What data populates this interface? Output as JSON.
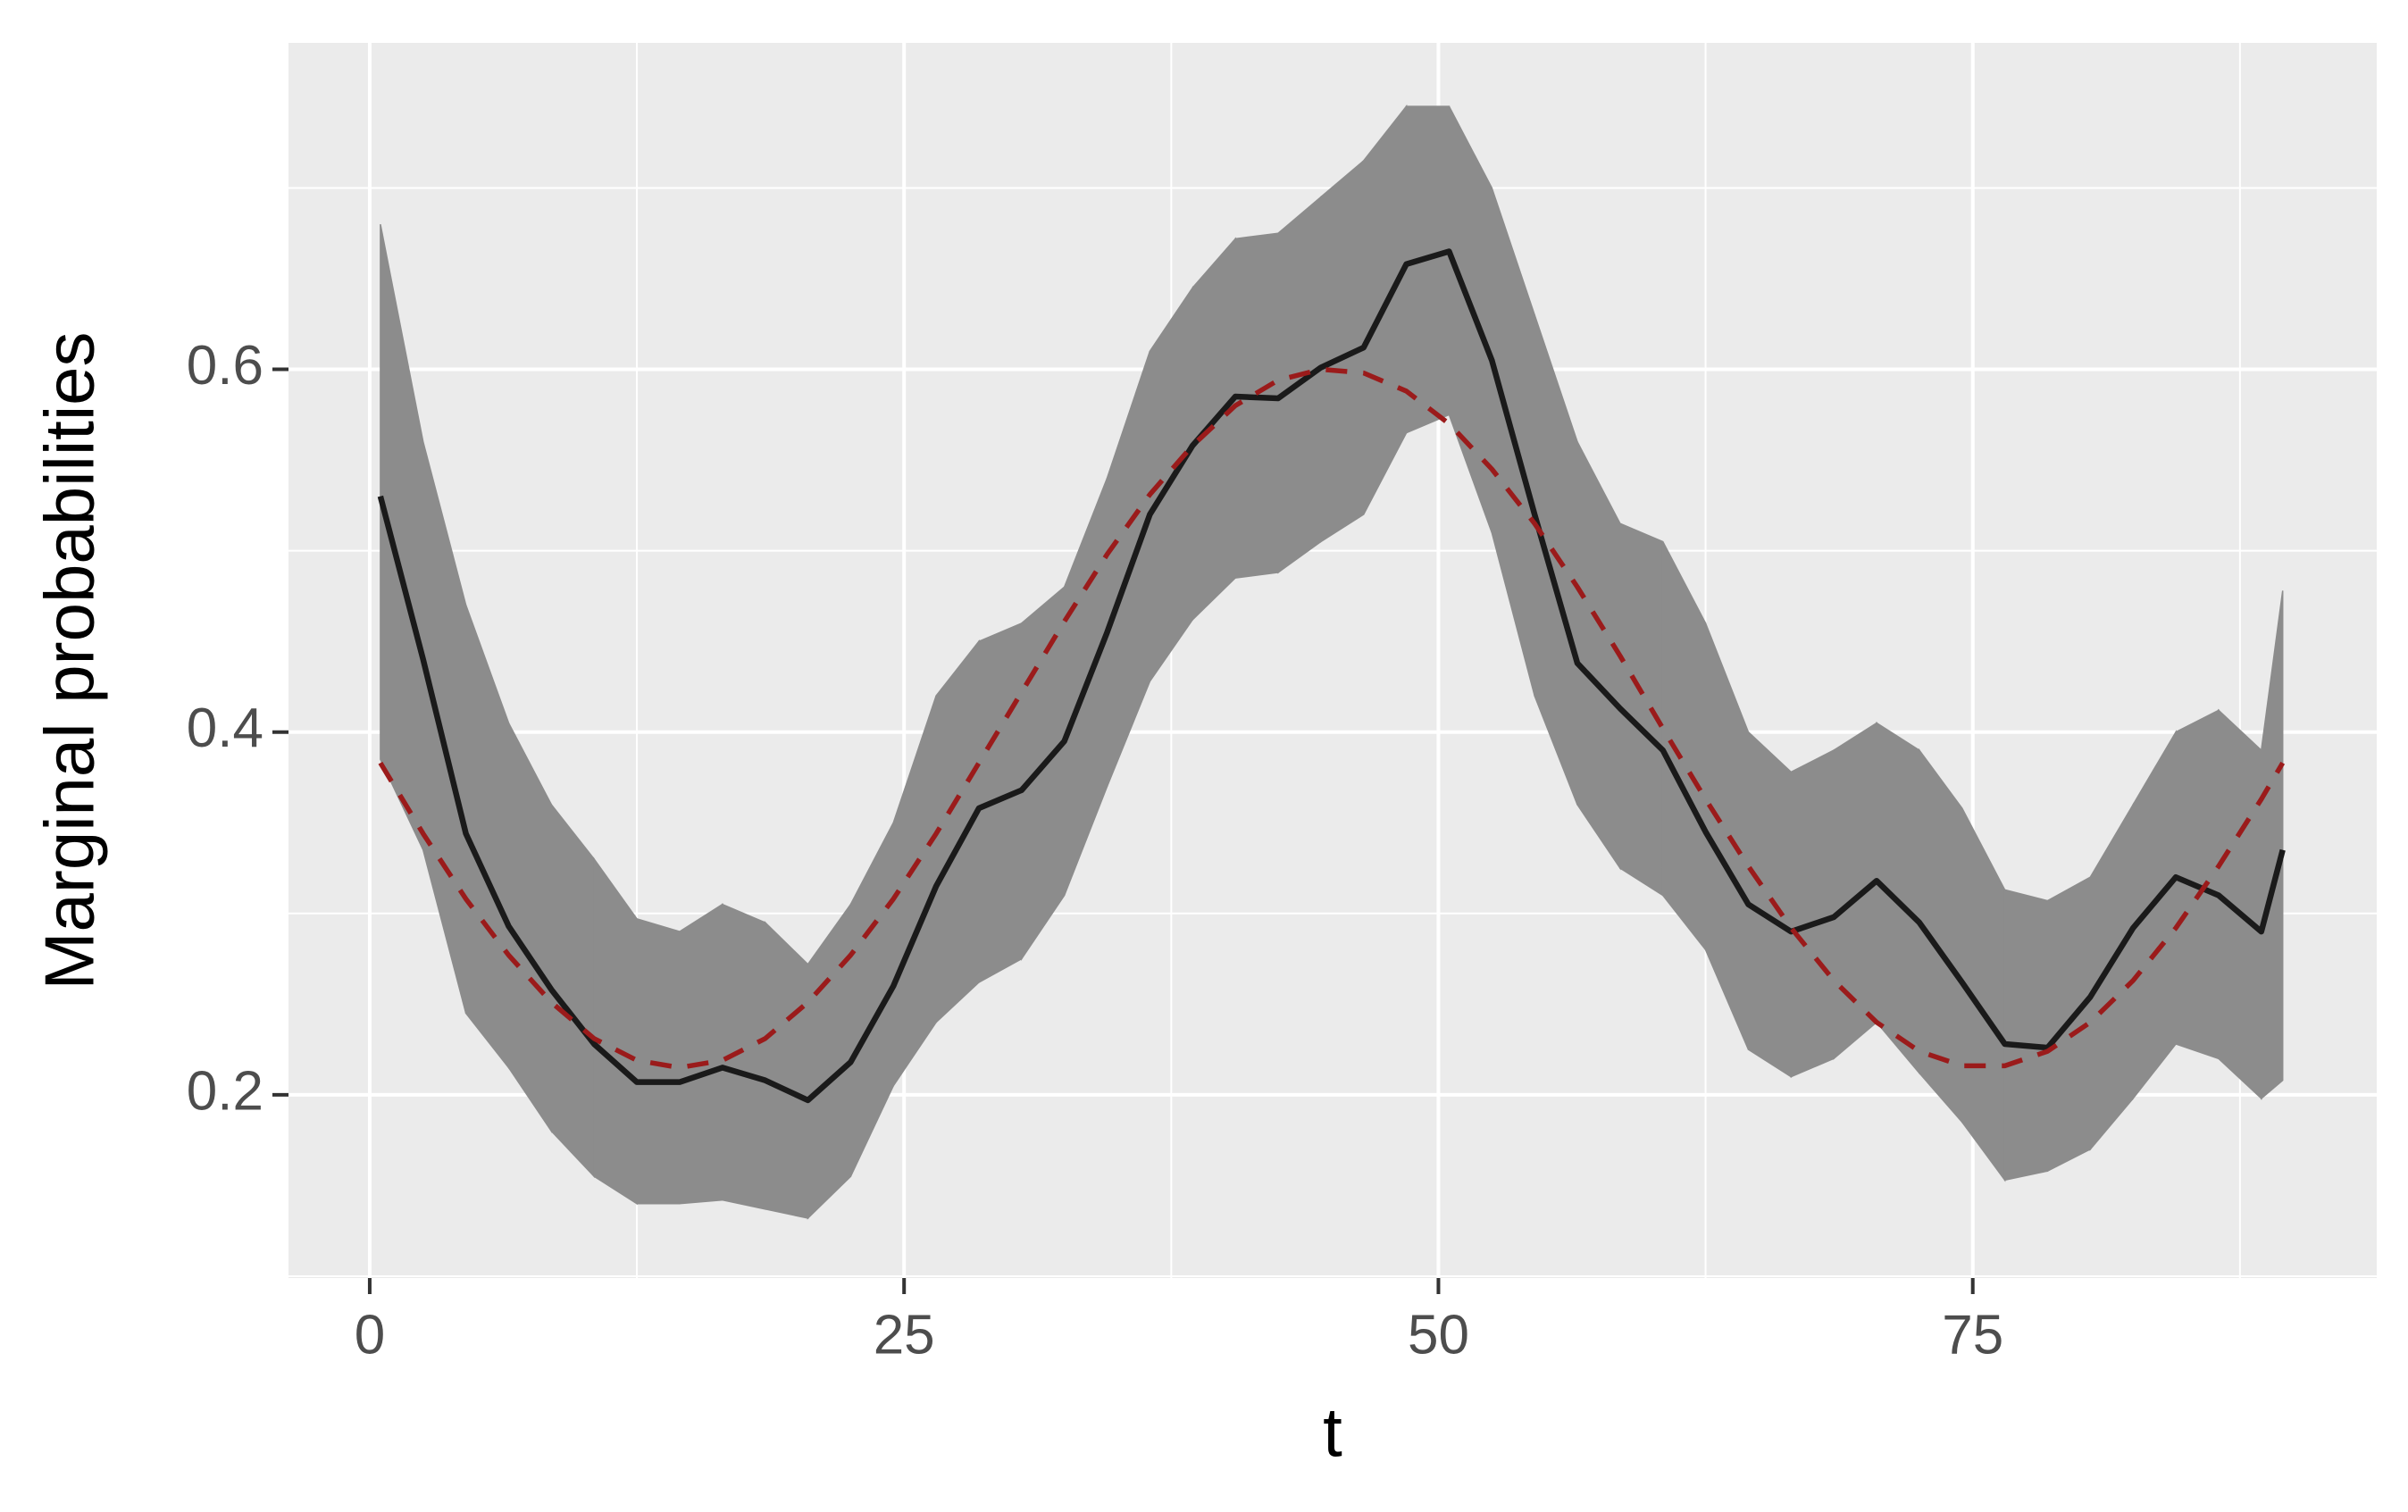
{
  "chart_data": {
    "type": "line",
    "x_label": "t",
    "y_label": "Marginal probabilities",
    "x": [
      0.5,
      2.5,
      4.5,
      6.5,
      8.5,
      10.5,
      12.5,
      14.5,
      16.5,
      18.5,
      20.5,
      22.5,
      24.5,
      26.5,
      28.5,
      30.5,
      32.5,
      34.5,
      36.5,
      38.5,
      40.5,
      42.5,
      44.5,
      46.5,
      48.5,
      50.5,
      52.5,
      54.5,
      56.5,
      58.5,
      60.5,
      62.5,
      64.5,
      66.5,
      68.5,
      70.5,
      72.5,
      74.5,
      76.5,
      78.5,
      80.5,
      82.5,
      84.5,
      86.5,
      88.5,
      89.5
    ],
    "ribbon": {
      "color": "#8c8c8c",
      "upper": [
        0.68,
        0.56,
        0.47,
        0.405,
        0.36,
        0.33,
        0.297,
        0.29,
        0.305,
        0.295,
        0.272,
        0.305,
        0.35,
        0.42,
        0.45,
        0.46,
        0.48,
        0.54,
        0.61,
        0.645,
        0.672,
        0.675,
        0.695,
        0.715,
        0.745,
        0.745,
        0.7,
        0.63,
        0.56,
        0.515,
        0.505,
        0.46,
        0.4,
        0.378,
        0.39,
        0.405,
        0.39,
        0.358,
        0.313,
        0.307,
        0.32,
        0.36,
        0.4,
        0.412,
        0.39,
        0.478
      ],
      "lower": [
        0.385,
        0.335,
        0.245,
        0.215,
        0.18,
        0.155,
        0.14,
        0.14,
        0.142,
        0.137,
        0.132,
        0.155,
        0.205,
        0.24,
        0.262,
        0.275,
        0.31,
        0.37,
        0.428,
        0.462,
        0.485,
        0.488,
        0.505,
        0.52,
        0.565,
        0.575,
        0.51,
        0.42,
        0.36,
        0.325,
        0.31,
        0.28,
        0.225,
        0.21,
        0.22,
        0.24,
        0.212,
        0.185,
        0.153,
        0.158,
        0.17,
        0.198,
        0.228,
        0.22,
        0.198,
        0.208
      ]
    },
    "series": [
      {
        "color": "#1a1a1a",
        "style": "solid",
        "values": [
          0.53,
          0.44,
          0.344,
          0.293,
          0.258,
          0.228,
          0.207,
          0.207,
          0.215,
          0.208,
          0.197,
          0.218,
          0.26,
          0.315,
          0.358,
          0.368,
          0.395,
          0.455,
          0.52,
          0.558,
          0.585,
          0.584,
          0.601,
          0.612,
          0.658,
          0.665,
          0.605,
          0.52,
          0.438,
          0.413,
          0.39,
          0.345,
          0.305,
          0.29,
          0.298,
          0.318,
          0.295,
          0.262,
          0.228,
          0.226,
          0.254,
          0.292,
          0.32,
          0.31,
          0.29,
          0.335
        ]
      },
      {
        "color": "#9b1b1b",
        "style": "dashed",
        "values": [
          0.383,
          0.344,
          0.308,
          0.277,
          0.251,
          0.231,
          0.219,
          0.215,
          0.219,
          0.231,
          0.251,
          0.277,
          0.308,
          0.344,
          0.383,
          0.422,
          0.461,
          0.498,
          0.531,
          0.558,
          0.58,
          0.594,
          0.6,
          0.598,
          0.588,
          0.57,
          0.545,
          0.515,
          0.48,
          0.442,
          0.402,
          0.363,
          0.326,
          0.292,
          0.263,
          0.24,
          0.224,
          0.216,
          0.216,
          0.224,
          0.24,
          0.263,
          0.292,
          0.326,
          0.363,
          0.383
        ]
      }
    ],
    "xlim": [
      -3.8,
      93.9
    ],
    "ylim": [
      0.099,
      0.78
    ],
    "xticks": [
      0,
      25,
      50,
      75
    ],
    "yticks": [
      0.2,
      0.4,
      0.6
    ],
    "minor_xticks": [
      12.5,
      37.5,
      62.5,
      87.5
    ],
    "minor_yticks": [
      0.1,
      0.3,
      0.5,
      0.7
    ],
    "grid": true
  }
}
